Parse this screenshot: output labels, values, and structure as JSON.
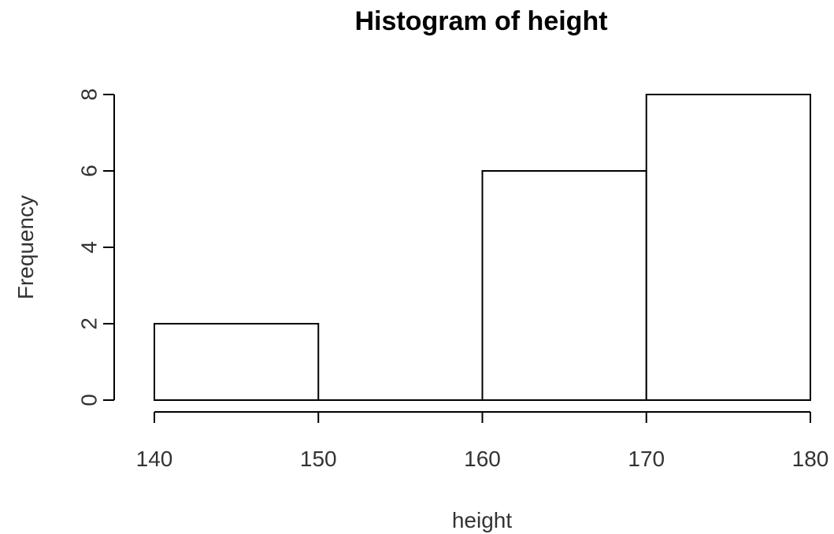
{
  "chart_data": {
    "type": "bar",
    "title": "Histogram of height",
    "xlabel": "height",
    "ylabel": "Frequency",
    "bins": [
      {
        "from": 140,
        "to": 150,
        "count": 2
      },
      {
        "from": 150,
        "to": 160,
        "count": 0
      },
      {
        "from": 160,
        "to": 170,
        "count": 6
      },
      {
        "from": 170,
        "to": 180,
        "count": 8
      }
    ],
    "x_ticks": [
      140,
      150,
      160,
      170,
      180
    ],
    "y_ticks": [
      0,
      2,
      4,
      6,
      8
    ],
    "xlim": [
      140,
      180
    ],
    "ylim": [
      0,
      8
    ],
    "grid": false,
    "legend": "none",
    "bar_fill": "#ffffff",
    "bar_stroke": "#000000"
  }
}
